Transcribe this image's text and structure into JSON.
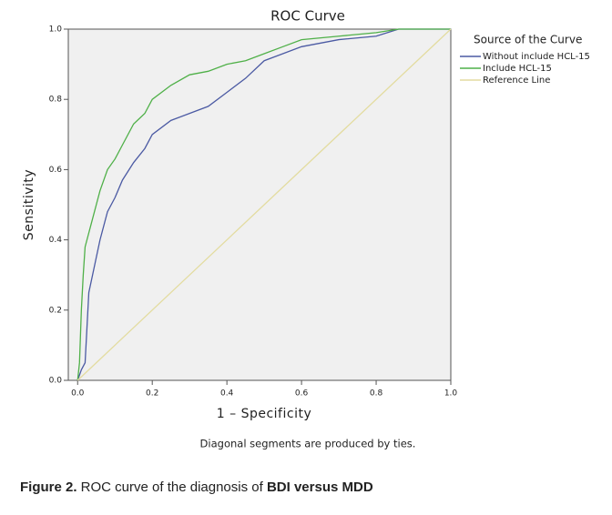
{
  "chart_data": {
    "type": "line",
    "title": "ROC Curve",
    "x_label": "1 – Specificity",
    "y_label": "Sensitivity",
    "legend_title": "Source of the Curve",
    "legend_position": "right",
    "note": "Diagonal segments are produced by ties.",
    "xlim": [
      -0.025,
      1.0
    ],
    "ylim": [
      0,
      1.0
    ],
    "xticks": [
      {
        "value": 0,
        "label": "0.0"
      },
      0.2,
      0.4,
      0.6,
      0.8,
      {
        "value": 1,
        "label": "1.0"
      }
    ],
    "yticks": [
      {
        "value": 0,
        "label": "0.0"
      },
      0.2,
      0.4,
      0.6,
      0.8,
      {
        "value": 1,
        "label": "1.0"
      }
    ],
    "grid": false,
    "series": [
      {
        "name": "Without include HCL-15",
        "color": "#4b5aa3",
        "x": [
          0,
          0.01,
          0.02,
          0.025,
          0.03,
          0.04,
          0.05,
          0.06,
          0.08,
          0.1,
          0.12,
          0.15,
          0.18,
          0.2,
          0.25,
          0.3,
          0.35,
          0.4,
          0.45,
          0.5,
          0.55,
          0.6,
          0.7,
          0.8,
          0.86,
          1.0
        ],
        "values": [
          0,
          0.03,
          0.05,
          0.15,
          0.25,
          0.3,
          0.35,
          0.4,
          0.48,
          0.52,
          0.57,
          0.62,
          0.66,
          0.7,
          0.74,
          0.76,
          0.78,
          0.82,
          0.86,
          0.91,
          0.93,
          0.95,
          0.97,
          0.98,
          1.0,
          1.0
        ]
      },
      {
        "name": "Include HCL-15",
        "color": "#4fb048",
        "x": [
          0,
          0.005,
          0.01,
          0.015,
          0.02,
          0.03,
          0.04,
          0.05,
          0.06,
          0.08,
          0.1,
          0.12,
          0.15,
          0.18,
          0.2,
          0.25,
          0.3,
          0.35,
          0.4,
          0.45,
          0.5,
          0.55,
          0.6,
          0.7,
          0.8,
          0.86,
          1.0
        ],
        "values": [
          0,
          0.05,
          0.2,
          0.3,
          0.38,
          0.42,
          0.46,
          0.5,
          0.54,
          0.6,
          0.63,
          0.67,
          0.73,
          0.76,
          0.8,
          0.84,
          0.87,
          0.88,
          0.9,
          0.91,
          0.93,
          0.95,
          0.97,
          0.98,
          0.99,
          1.0,
          1.0
        ]
      },
      {
        "name": "Reference Line",
        "color": "#e3dca0",
        "x": [
          0,
          1.0
        ],
        "values": [
          0,
          1.0
        ]
      }
    ]
  },
  "caption": {
    "label": "Figure 2.",
    "text": " ROC curve of the diagnosis of ",
    "emphasis": "BDI versus MDD"
  }
}
